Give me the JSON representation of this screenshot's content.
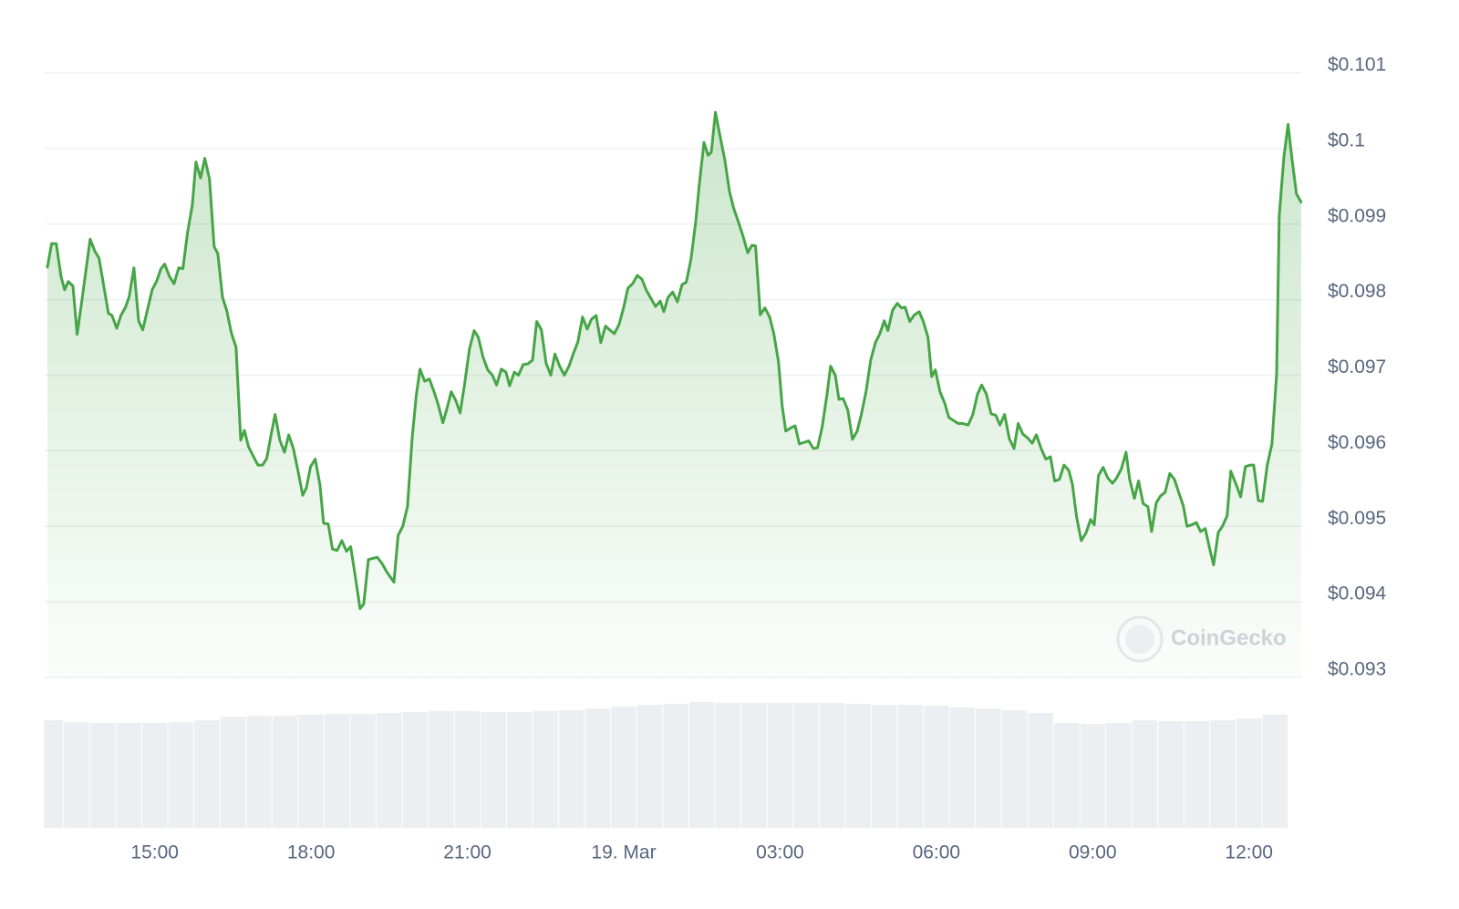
{
  "chart_data": {
    "type": "line",
    "x": [
      12.94,
      13.02,
      13.11,
      13.2,
      13.27,
      13.34,
      13.43,
      13.51,
      13.6,
      13.76,
      13.85,
      13.93,
      14.11,
      14.18,
      14.27,
      14.35,
      14.44,
      14.51,
      14.6,
      14.69,
      14.77,
      14.95,
      15.04,
      15.12,
      15.19,
      15.28,
      15.37,
      15.46,
      15.54,
      15.63,
      15.72,
      15.79,
      15.88,
      15.96,
      16.05,
      16.14,
      16.21,
      16.3,
      16.38,
      16.47,
      16.56,
      16.65,
      16.72,
      16.8,
      16.89,
      16.98,
      17.07,
      17.15,
      17.24,
      17.31,
      17.4,
      17.49,
      17.57,
      17.66,
      17.75,
      17.84,
      17.91,
      17.99,
      18.08,
      18.17,
      18.24,
      18.33,
      18.41,
      18.5,
      18.59,
      18.68,
      18.76,
      18.85,
      18.94,
      19.01,
      19.1,
      19.27,
      19.36,
      19.45,
      19.59,
      19.67,
      19.76,
      19.85,
      19.94,
      20.02,
      20.09,
      20.18,
      20.27,
      20.36,
      20.44,
      20.53,
      20.6,
      20.69,
      20.78,
      20.86,
      20.95,
      21.04,
      21.13,
      21.21,
      21.3,
      21.39,
      21.48,
      21.56,
      21.65,
      21.74,
      21.81,
      21.9,
      21.98,
      22.07,
      22.16,
      22.25,
      22.33,
      22.42,
      22.51,
      22.6,
      22.68,
      22.77,
      22.86,
      22.95,
      23.03,
      23.12,
      23.21,
      23.3,
      23.38,
      23.47,
      23.56,
      23.65,
      23.73,
      23.82,
      23.91,
      24.0,
      24.08,
      24.17,
      24.26,
      24.35,
      24.43,
      24.52,
      24.61,
      24.7,
      24.77,
      24.85,
      24.94,
      25.03,
      25.12,
      25.2,
      25.29,
      25.38,
      25.45,
      25.54,
      25.62,
      25.68,
      25.76,
      25.85,
      25.94,
      26.03,
      26.11,
      26.2,
      26.29,
      26.38,
      26.46,
      26.53,
      26.62,
      26.71,
      26.8,
      26.88,
      26.97,
      27.04,
      27.11,
      27.2,
      27.29,
      27.37,
      27.46,
      27.55,
      27.64,
      27.72,
      27.81,
      27.9,
      27.97,
      28.06,
      28.13,
      28.21,
      28.3,
      28.39,
      28.48,
      28.56,
      28.65,
      28.74,
      28.83,
      28.91,
      29.0,
      29.07,
      29.16,
      29.25,
      29.33,
      29.4,
      29.49,
      29.58,
      29.67,
      29.75,
      29.84,
      29.91,
      29.98,
      30.07,
      30.16,
      30.24,
      30.33,
      30.42,
      30.51,
      30.61,
      30.7,
      30.79,
      30.87,
      30.96,
      31.05,
      31.14,
      31.22,
      31.31,
      31.4,
      31.49,
      31.57,
      31.66,
      31.75,
      31.84,
      31.92,
      32.01,
      32.1,
      32.19,
      32.27,
      32.36,
      32.45,
      32.54,
      32.61,
      32.69,
      32.78,
      32.87,
      32.96,
      33.03,
      33.11,
      33.2,
      33.29,
      33.38,
      33.46,
      33.55,
      33.64,
      33.71,
      33.8,
      33.88,
      33.97,
      34.06,
      34.13,
      34.22,
      34.3,
      34.39,
      34.48,
      34.57,
      34.65,
      34.74,
      34.81,
      34.9,
      34.99,
      35.07,
      35.16,
      35.25,
      35.32,
      35.41,
      35.49,
      35.58,
      35.65,
      35.76,
      35.84,
      35.93,
      36.02,
      36.09,
      36.18,
      36.26,
      36.35,
      36.44,
      36.53,
      36.58,
      36.67,
      36.75,
      36.82,
      36.91,
      37.0
    ],
    "series": [
      {
        "color": "#46a546",
        "values": [
          0.09843,
          0.09874,
          0.09874,
          0.09831,
          0.09813,
          0.09824,
          0.09818,
          0.09754,
          0.09798,
          0.0988,
          0.09864,
          0.09855,
          0.09782,
          0.09779,
          0.09762,
          0.09779,
          0.0979,
          0.09804,
          0.09842,
          0.09772,
          0.0976,
          0.09813,
          0.09825,
          0.09841,
          0.09847,
          0.09831,
          0.09821,
          0.09842,
          0.09841,
          0.09889,
          0.09925,
          0.09982,
          0.09961,
          0.09987,
          0.0996,
          0.0987,
          0.09861,
          0.09803,
          0.09786,
          0.09756,
          0.09737,
          0.09614,
          0.09627,
          0.09605,
          0.09593,
          0.09581,
          0.09581,
          0.0959,
          0.09624,
          0.09648,
          0.09614,
          0.09598,
          0.09621,
          0.09603,
          0.09573,
          0.09541,
          0.09551,
          0.09579,
          0.09589,
          0.09555,
          0.09504,
          0.09503,
          0.0947,
          0.09468,
          0.09481,
          0.09467,
          0.09473,
          0.09433,
          0.09391,
          0.09397,
          0.09456,
          0.09459,
          0.09451,
          0.0944,
          0.09426,
          0.09488,
          0.095,
          0.09526,
          0.09617,
          0.09674,
          0.09708,
          0.09692,
          0.09695,
          0.09678,
          0.09661,
          0.09637,
          0.09654,
          0.09678,
          0.09666,
          0.0965,
          0.0969,
          0.09735,
          0.09759,
          0.0975,
          0.09724,
          0.09707,
          0.097,
          0.09687,
          0.09708,
          0.09704,
          0.09686,
          0.09704,
          0.097,
          0.09714,
          0.09715,
          0.0972,
          0.09771,
          0.0976,
          0.09716,
          0.097,
          0.09728,
          0.09712,
          0.097,
          0.09712,
          0.09728,
          0.09744,
          0.09777,
          0.09761,
          0.09774,
          0.09779,
          0.09743,
          0.09765,
          0.0976,
          0.09755,
          0.09767,
          0.0979,
          0.09815,
          0.09821,
          0.09832,
          0.09827,
          0.09813,
          0.09802,
          0.09791,
          0.09798,
          0.09784,
          0.09803,
          0.0981,
          0.09797,
          0.0982,
          0.09823,
          0.09853,
          0.09902,
          0.09952,
          0.10008,
          0.09991,
          0.09995,
          0.10048,
          0.10016,
          0.09985,
          0.09943,
          0.09921,
          0.09903,
          0.09884,
          0.09862,
          0.09872,
          0.09871,
          0.0978,
          0.09789,
          0.09777,
          0.09755,
          0.09718,
          0.0966,
          0.09626,
          0.0963,
          0.09633,
          0.09609,
          0.09611,
          0.09613,
          0.09603,
          0.09604,
          0.09632,
          0.09674,
          0.09712,
          0.097,
          0.09668,
          0.09669,
          0.09654,
          0.09615,
          0.09626,
          0.09648,
          0.09678,
          0.0972,
          0.09743,
          0.09754,
          0.09772,
          0.09759,
          0.09786,
          0.09795,
          0.09789,
          0.0979,
          0.09771,
          0.0978,
          0.09784,
          0.09771,
          0.0975,
          0.09698,
          0.09707,
          0.09678,
          0.09663,
          0.09644,
          0.0964,
          0.09636,
          0.09636,
          0.09634,
          0.09648,
          0.09675,
          0.09687,
          0.09675,
          0.09649,
          0.09647,
          0.09634,
          0.09648,
          0.09616,
          0.09603,
          0.09636,
          0.09622,
          0.09617,
          0.0961,
          0.09621,
          0.09603,
          0.09589,
          0.09592,
          0.0956,
          0.09562,
          0.09581,
          0.09574,
          0.09556,
          0.09513,
          0.09481,
          0.09491,
          0.09509,
          0.09502,
          0.09567,
          0.09578,
          0.09564,
          0.09557,
          0.09564,
          0.09576,
          0.09598,
          0.09562,
          0.09537,
          0.0956,
          0.0953,
          0.09526,
          0.09493,
          0.09531,
          0.0954,
          0.09545,
          0.0957,
          0.09562,
          0.09545,
          0.09527,
          0.095,
          0.09502,
          0.09505,
          0.09493,
          0.09497,
          0.09469,
          0.09449,
          0.09492,
          0.095,
          0.09514,
          0.09573,
          0.09554,
          0.09539,
          0.09579,
          0.09581,
          0.09581,
          0.09534,
          0.09533,
          0.09581,
          0.09609,
          0.09702,
          0.09911,
          0.09989,
          0.10032,
          0.09989,
          0.0994,
          0.09929
        ]
      }
    ],
    "xlim": [
      12.87,
      37.02
    ],
    "xticks": [
      {
        "value": 15,
        "label": "15:00"
      },
      {
        "value": 18,
        "label": "18:00"
      },
      {
        "value": 21,
        "label": "21:00"
      },
      {
        "value": 24,
        "label": "19. Mar"
      },
      {
        "value": 27,
        "label": "03:00"
      },
      {
        "value": 30,
        "label": "06:00"
      },
      {
        "value": 33,
        "label": "09:00"
      },
      {
        "value": 36,
        "label": "12:00"
      }
    ],
    "ylim": [
      0.093,
      0.101
    ],
    "yticks": [
      {
        "value": 0.101,
        "label": "$0.101"
      },
      {
        "value": 0.1,
        "label": "$0.1"
      },
      {
        "value": 0.099,
        "label": "$0.099"
      },
      {
        "value": 0.098,
        "label": "$0.098"
      },
      {
        "value": 0.097,
        "label": "$0.097"
      },
      {
        "value": 0.096,
        "label": "$0.096"
      },
      {
        "value": 0.095,
        "label": "$0.095"
      },
      {
        "value": 0.094,
        "label": "$0.094"
      },
      {
        "value": 0.093,
        "label": "$0.093"
      }
    ],
    "grid": true,
    "volume": {
      "color": "#eceef1",
      "x": [
        13.0,
        13.5,
        14.0,
        14.5,
        15.0,
        15.5,
        16.0,
        16.5,
        17.0,
        17.5,
        18.0,
        18.5,
        19.0,
        19.5,
        20.0,
        20.5,
        21.0,
        21.5,
        22.0,
        22.5,
        23.0,
        23.5,
        24.0,
        24.5,
        25.0,
        25.5,
        26.0,
        26.5,
        27.0,
        27.5,
        28.0,
        28.5,
        29.0,
        29.5,
        30.0,
        30.5,
        31.0,
        31.5,
        32.0,
        32.5,
        33.0,
        33.5,
        34.0,
        34.5,
        35.0,
        35.5,
        36.0,
        36.5
      ],
      "values": [
        118,
        116,
        115,
        115,
        115,
        116,
        118,
        122,
        123,
        123,
        124,
        125,
        125,
        126,
        127,
        128,
        128,
        127,
        127,
        128,
        129,
        131,
        133,
        135,
        136,
        138,
        137,
        137,
        137,
        137,
        137,
        136,
        135,
        135,
        134,
        132,
        131,
        129,
        126,
        115,
        114,
        115,
        118,
        117,
        117,
        118,
        120,
        124
      ]
    },
    "watermark": "CoinGecko"
  }
}
